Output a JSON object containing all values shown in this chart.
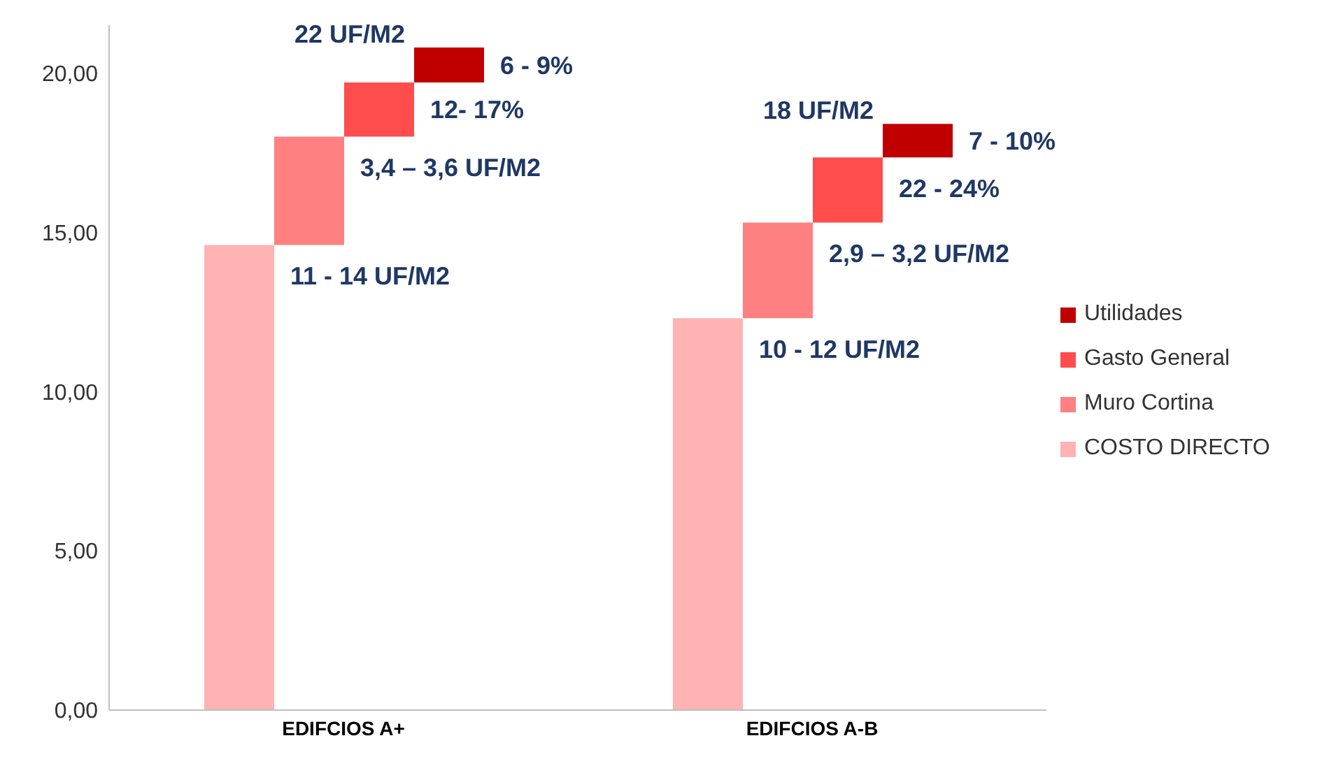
{
  "chart_data": {
    "type": "bar",
    "categories": [
      "EDIFCIOS A+",
      "EDIFCIOS A-B"
    ],
    "series": [
      {
        "name": "COSTO DIRECTO",
        "color": "#ffb3b3",
        "base": [
          0,
          0
        ],
        "values": [
          14.6,
          12.3
        ]
      },
      {
        "name": "Muro Cortina",
        "color": "#ff8080",
        "base": [
          14.6,
          12.3
        ],
        "values": [
          3.4,
          3.0
        ]
      },
      {
        "name": "Gasto General",
        "color": "#ff4d4d",
        "base": [
          18.0,
          15.3
        ],
        "values": [
          1.7,
          2.05
        ]
      },
      {
        "name": "Utilidades",
        "color": "#c00000",
        "base": [
          19.7,
          17.35
        ],
        "values": [
          1.1,
          1.05
        ]
      }
    ],
    "ylim": [
      0,
      21.5
    ],
    "yticks": [
      {
        "value": 0,
        "label": "0,00"
      },
      {
        "value": 5,
        "label": "5,00"
      },
      {
        "value": 10,
        "label": "10,00"
      },
      {
        "value": 15,
        "label": "15,00"
      },
      {
        "value": 20,
        "label": "20,00"
      }
    ],
    "grid": false,
    "legend": "right",
    "annotations": [
      "22 UF/M2",
      "6 - 9%",
      "12- 17%",
      "3,4 – 3,6 UF/M2",
      "11 - 14 UF/M2",
      "18 UF/M2",
      "7 - 10%",
      "22 - 24%",
      "2,9 – 3,2 UF/M2",
      "10 - 12 UF/M2"
    ]
  }
}
